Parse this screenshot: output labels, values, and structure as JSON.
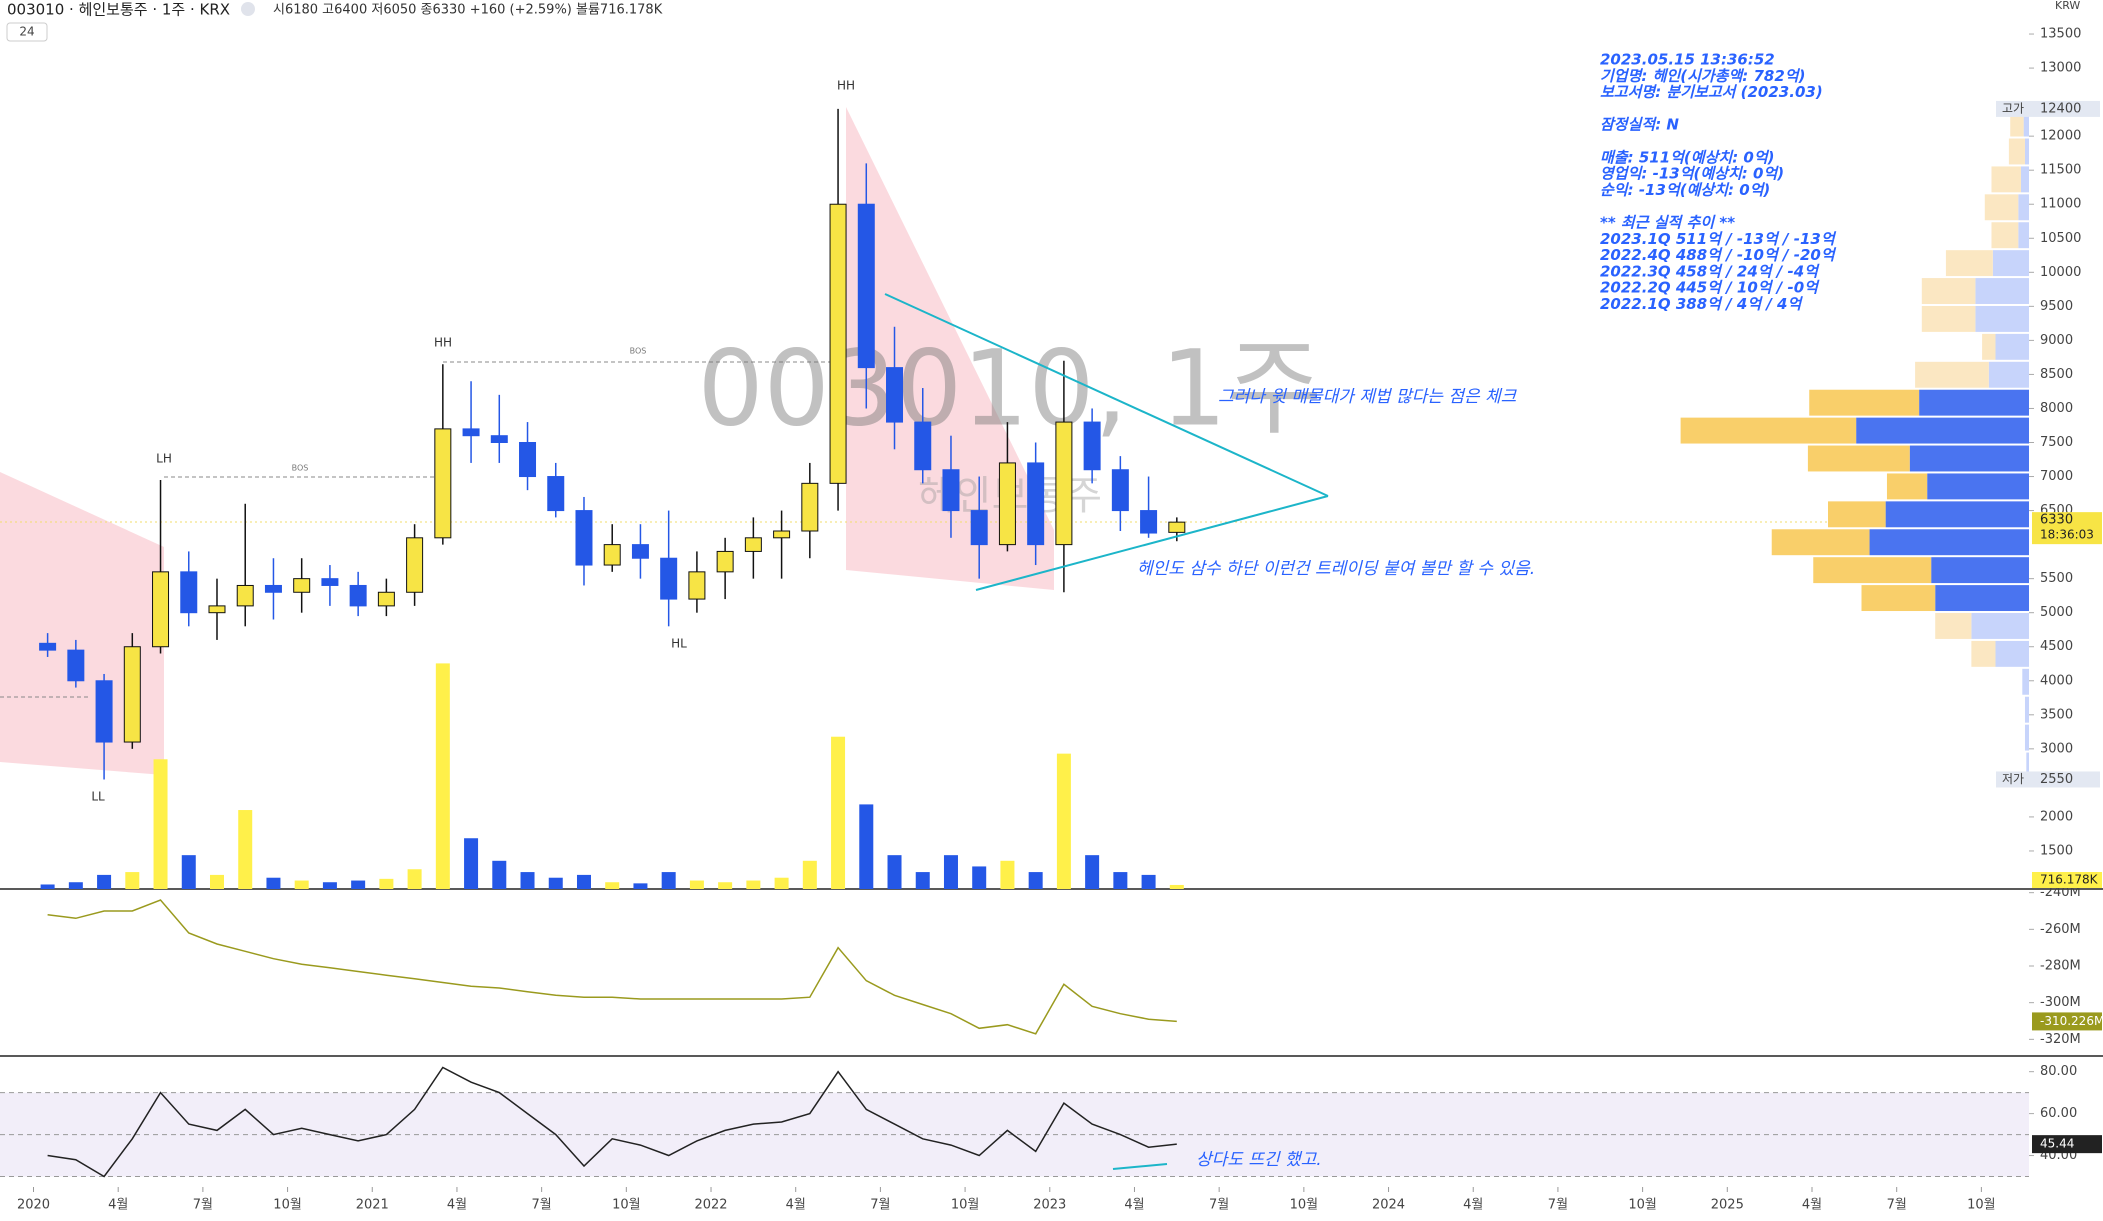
{
  "header": {
    "symbol": "003010 · 헤인보통주 · 1주 · KRX",
    "ohlc": "시6180 고6400 저6050 종6330 +160 (+2.59%) 볼륨716.178K",
    "interval": "24",
    "currency": "KRW"
  },
  "info_box": [
    "2023.05.15 13:36:52",
    "기업명: 헤인(시가총액: 782억)",
    "보고서명: 분기보고서 (2023.03)",
    "잠정실적: N",
    "매출: 511억(예상치: 0억)",
    "영업익: -13억(예상치: 0억)",
    "순익: -13억(예상치: 0억)",
    "** 최근 실적 추이 **",
    "2023.1Q  511억 / -13억 / -13억",
    "2022.4Q  488억 / -10억 / -20억",
    "2022.3Q  458억 / 24억 / -4억",
    "2022.2Q  445억 / 10억 / -0억",
    "2022.1Q  388억 / 4억 / 4억"
  ],
  "annotations": {
    "note_top": "그러나 윗 매물대가 제법 많다는 점은 체크",
    "note_mid": "헤인도 삼수 하단 이런건 트레이딩 붙여 볼만 할 수 있음.",
    "note_rsi": "상다도 뜨긴 했고.",
    "watermark": "003010, 1주",
    "watermark_name": "헤인보통주",
    "hh1": "HH",
    "hh2": "HH",
    "lh": "LH",
    "ll": "LL",
    "hl": "HL",
    "bos1": "BOS",
    "bos2": "BOS"
  },
  "chart_data": [
    {
      "type": "candlestick",
      "x": [
        "2020-01",
        "2020-02",
        "2020-03",
        "2020-04",
        "2020-05",
        "2020-06",
        "2020-07",
        "2020-08",
        "2020-09",
        "2020-10",
        "2020-11",
        "2020-12",
        "2021-01",
        "2021-02",
        "2021-03",
        "2021-04",
        "2021-05",
        "2021-06",
        "2021-07",
        "2021-08",
        "2021-09",
        "2021-10",
        "2021-11",
        "2021-12",
        "2022-01",
        "2022-02",
        "2022-03",
        "2022-04",
        "2022-05",
        "2022-06",
        "2022-07",
        "2022-08",
        "2022-09",
        "2022-10",
        "2022-11",
        "2022-12",
        "2023-01",
        "2023-02",
        "2023-03",
        "2023-04",
        "2023-05"
      ],
      "open": [
        4550,
        4450,
        4000,
        3100,
        4500,
        5600,
        5000,
        5100,
        5400,
        5300,
        5500,
        5400,
        5100,
        5300,
        6100,
        7700,
        7600,
        7500,
        7000,
        6500,
        5700,
        6000,
        5800,
        5200,
        5600,
        5900,
        6100,
        6200,
        6900,
        11000,
        8600,
        7800,
        7100,
        6500,
        6000,
        7200,
        6000,
        7800,
        7100,
        6500,
        6180
      ],
      "high": [
        4700,
        4600,
        4100,
        4700,
        6950,
        5900,
        5500,
        6600,
        5800,
        5800,
        5700,
        5600,
        5500,
        6300,
        8650,
        8400,
        8200,
        7800,
        7200,
        6700,
        6300,
        6300,
        6500,
        5900,
        6100,
        6400,
        6500,
        7200,
        12400,
        11600,
        9200,
        8300,
        7600,
        7000,
        7800,
        7500,
        8700,
        8000,
        7300,
        7000,
        6400
      ],
      "low": [
        4350,
        3900,
        2550,
        3000,
        4400,
        4800,
        4600,
        4800,
        4900,
        5000,
        5100,
        4950,
        4950,
        5100,
        6000,
        7200,
        7200,
        6800,
        6400,
        5400,
        5600,
        5500,
        4800,
        5000,
        5200,
        5500,
        5500,
        5800,
        6500,
        8000,
        7400,
        6900,
        6100,
        5500,
        5900,
        5700,
        5300,
        6900,
        6200,
        6100,
        6050
      ],
      "close": [
        4450,
        4000,
        3100,
        4500,
        5600,
        5000,
        5100,
        5400,
        5300,
        5500,
        5400,
        5100,
        5300,
        6100,
        7700,
        7600,
        7500,
        7000,
        6500,
        5700,
        6000,
        5800,
        5200,
        5600,
        5900,
        6100,
        6200,
        6900,
        11000,
        8600,
        7800,
        7100,
        6500,
        6000,
        7200,
        6000,
        7800,
        7100,
        6500,
        6170,
        6330
      ],
      "up_color": "#f7e445",
      "down_color": "#2457e6",
      "ylim": [
        1000,
        14000
      ],
      "yticks": [
        1500,
        2000,
        3000,
        3500,
        4000,
        4500,
        5000,
        5500,
        6500,
        7000,
        7500,
        8000,
        8500,
        9000,
        9500,
        10000,
        10500,
        11000,
        11500,
        12000,
        13000,
        13500
      ],
      "xticks": [
        {
          "value": "2020-01",
          "label": "2020"
        },
        {
          "value": "2020-04",
          "label": "4월"
        },
        {
          "value": "2020-07",
          "label": "7월"
        },
        {
          "value": "2020-10",
          "label": "10월"
        },
        {
          "value": "2021-01",
          "label": "2021"
        },
        {
          "value": "2021-04",
          "label": "4월"
        },
        {
          "value": "2021-07",
          "label": "7월"
        },
        {
          "value": "2021-10",
          "label": "10월"
        },
        {
          "value": "2022-01",
          "label": "2022"
        },
        {
          "value": "2022-04",
          "label": "4월"
        },
        {
          "value": "2022-07",
          "label": "7월"
        },
        {
          "value": "2022-10",
          "label": "10월"
        },
        {
          "value": "2023-01",
          "label": "2023"
        },
        {
          "value": "2023-04",
          "label": "4월"
        },
        {
          "value": "2023-07",
          "label": "7월"
        },
        {
          "value": "2023-10",
          "label": "10월"
        },
        {
          "value": "2024-01",
          "label": "2024"
        },
        {
          "value": "2024-04",
          "label": "4월"
        },
        {
          "value": "2024-07",
          "label": "7월"
        },
        {
          "value": "2024-10",
          "label": "10월"
        },
        {
          "value": "2025-01",
          "label": "2025"
        },
        {
          "value": "2025-04",
          "label": "4월"
        },
        {
          "value": "2025-07",
          "label": "7월"
        },
        {
          "value": "2025-10",
          "label": "10월"
        }
      ],
      "price_marks": {
        "high_label": "고가",
        "high": 12400,
        "low_label": "저가",
        "low": 2550,
        "last": 6330,
        "countdown": "18:36:03"
      },
      "volume_profile": {
        "bins": [
          2550,
          2960,
          3370,
          3780,
          4190,
          4600,
          5010,
          5420,
          5830,
          6240,
          6650,
          7060,
          7470,
          7880,
          8290,
          8700,
          9110,
          9520,
          9930,
          10340,
          10750,
          11160,
          11570,
          11980,
          12390
        ],
        "up": [
          0,
          0,
          0,
          0,
          18,
          27,
          55,
          88,
          73,
          43,
          30,
          76,
          131,
          82,
          55,
          10,
          40,
          40,
          35,
          20,
          25,
          22,
          12,
          10
        ],
        "down": [
          2,
          3,
          3,
          5,
          25,
          43,
          70,
          73,
          119,
          107,
          76,
          89,
          129,
          82,
          30,
          25,
          40,
          40,
          27,
          8,
          8,
          6,
          3,
          4
        ],
        "xlim": [
          0,
          300
        ],
        "value_area": [
          5010,
          8290
        ],
        "up_color": "#f9cf6a",
        "down_color": "#4a74f0",
        "up_color_outside": "#fbe7c2",
        "down_color_outside": "#c7d4fb"
      }
    },
    {
      "type": "bar",
      "values": [
        800,
        1200,
        2500,
        3000,
        23000,
        6000,
        2500,
        14000,
        2000,
        1500,
        1200,
        1500,
        1800,
        3500,
        40000,
        9000,
        5000,
        3000,
        2000,
        2500,
        1200,
        1000,
        3000,
        1500,
        1200,
        1500,
        2000,
        5000,
        27000,
        15000,
        6000,
        3000,
        6000,
        4000,
        5000,
        3000,
        24000,
        6000,
        3000,
        2500,
        716.178
      ],
      "value_labels": [
        null,
        null,
        null,
        null,
        null,
        null,
        null,
        null,
        null,
        null,
        null,
        null,
        null,
        null,
        null,
        null,
        null,
        null,
        null,
        null,
        null,
        null,
        null,
        null,
        null,
        null,
        null,
        null,
        null,
        null,
        null,
        null,
        null,
        null,
        null,
        null,
        null,
        null,
        null,
        null,
        "716.178K"
      ],
      "ylim": [
        0,
        50000
      ],
      "up_color": "#fff04a",
      "down_color": "#2457e6"
    },
    {
      "type": "line",
      "values": [
        -252,
        -254,
        -250,
        -250,
        -244,
        -262,
        -268,
        -272,
        -276,
        -279,
        -281,
        -283,
        -285,
        -287,
        -289,
        -291,
        -292,
        -294,
        -296,
        -297,
        -297,
        -298,
        -298,
        -298,
        -298,
        -298,
        -298,
        -297,
        -270,
        -288,
        -296,
        -301,
        -306,
        -314,
        -312,
        -317,
        -290,
        -302,
        -306,
        -309,
        -310.226
      ],
      "value_labels": [
        null,
        null,
        null,
        null,
        null,
        null,
        null,
        null,
        null,
        null,
        null,
        null,
        null,
        null,
        null,
        null,
        null,
        null,
        null,
        null,
        null,
        null,
        null,
        null,
        null,
        null,
        null,
        null,
        null,
        null,
        null,
        null,
        null,
        null,
        null,
        null,
        null,
        null,
        null,
        null,
        "-310.226M"
      ],
      "ylim": [
        -328,
        -238
      ],
      "yticks": [
        {
          "value": -240,
          "label": "-240M"
        },
        {
          "value": -260,
          "label": "-260M"
        },
        {
          "value": -280,
          "label": "-280M"
        },
        {
          "value": -300,
          "label": "-300M"
        },
        {
          "value": -320,
          "label": "-320M"
        }
      ],
      "color": "#9a9a1e"
    },
    {
      "type": "line",
      "values": [
        40,
        38,
        30,
        48,
        70,
        55,
        52,
        62,
        50,
        53,
        50,
        47,
        50,
        62,
        82,
        75,
        70,
        60,
        50,
        35,
        48,
        45,
        40,
        47,
        52,
        55,
        56,
        60,
        80,
        62,
        55,
        48,
        45,
        40,
        52,
        42,
        65,
        55,
        50,
        44,
        45.44
      ],
      "value_labels": [
        null,
        null,
        null,
        null,
        null,
        null,
        null,
        null,
        null,
        null,
        null,
        null,
        null,
        null,
        null,
        null,
        null,
        null,
        null,
        null,
        null,
        null,
        null,
        null,
        null,
        null,
        null,
        null,
        null,
        null,
        null,
        null,
        null,
        null,
        null,
        null,
        null,
        null,
        null,
        null,
        "45.44"
      ],
      "ylim": [
        25,
        87
      ],
      "yticks": [
        {
          "value": 80,
          "label": "80.00"
        },
        {
          "value": 60,
          "label": "60.00"
        },
        {
          "value": 40,
          "label": "40.00"
        }
      ],
      "band": [
        30,
        70
      ],
      "midline": 50,
      "color": "#222222",
      "band_color": "#7e57c2"
    }
  ]
}
